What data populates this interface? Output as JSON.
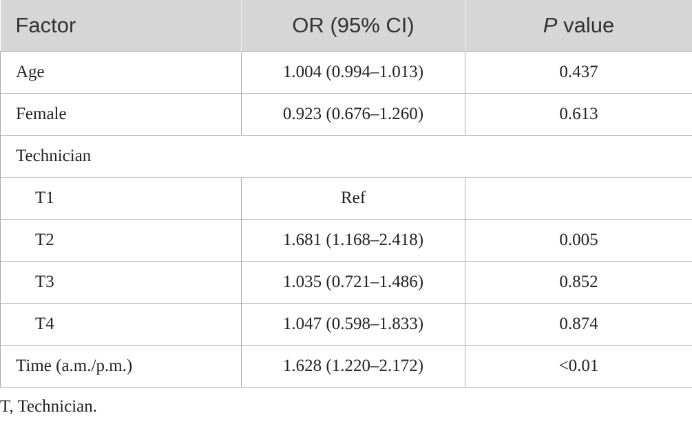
{
  "table": {
    "header": [
      "Factor",
      "OR (95% CI)",
      {
        "italic": "P",
        "text": "value"
      }
    ],
    "rows": [
      [
        "Age",
        "1.004 (0.994–1.013)",
        "0.437"
      ],
      [
        "Female",
        "0.923 (0.676–1.260)",
        "0.613"
      ],
      [
        "Technician"
      ],
      [
        "T1",
        "Ref"
      ],
      [
        "T2",
        "1.681 (1.168–2.418)",
        "0.005"
      ],
      [
        "T3",
        "1.035 (0.721–1.486)",
        "0.852"
      ],
      [
        "T4",
        "1.047 (0.598–1.833)",
        "0.874"
      ],
      [
        "Time (a.m./p.m.)",
        "1.628 (1.220–2.172)",
        "<0.01"
      ]
    ]
  },
  "footnote": "T, Technician."
}
